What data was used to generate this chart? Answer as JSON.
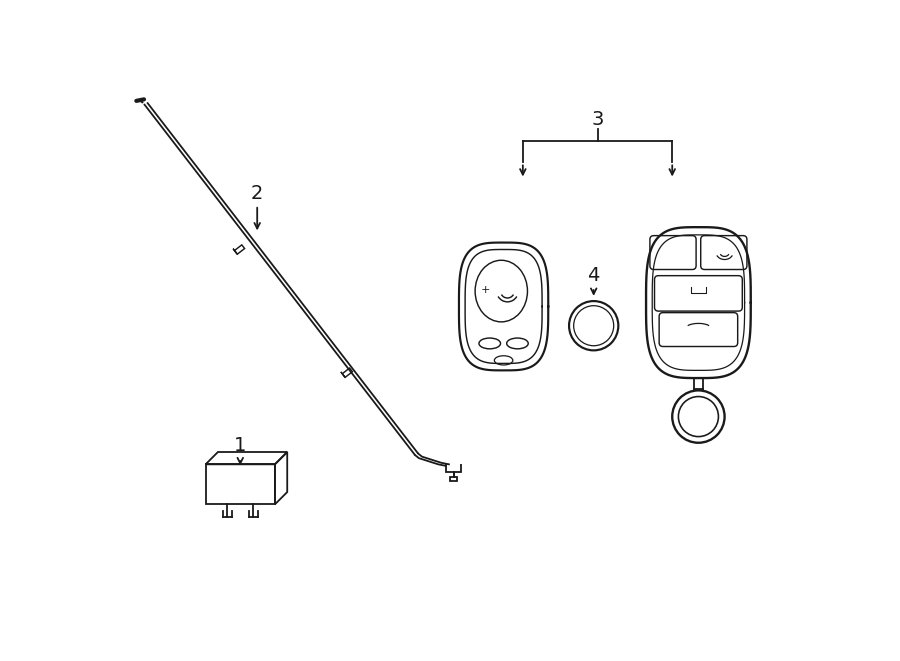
{
  "bg_color": "#ffffff",
  "line_color": "#1a1a1a",
  "lw": 1.3
}
